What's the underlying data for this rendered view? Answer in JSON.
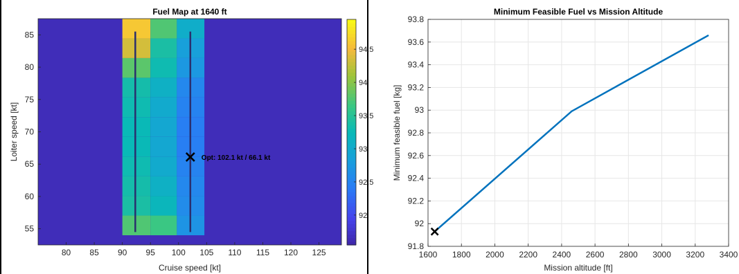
{
  "chart_data": [
    {
      "type": "heatmap",
      "title": "Fuel Map at 1640 ft",
      "xlabel": "Cruise speed [kt]",
      "ylabel": "Loiter speed [kt]",
      "xlim": [
        75,
        129
      ],
      "ylim": [
        52.5,
        87.5
      ],
      "xticks": [
        80,
        85,
        90,
        95,
        100,
        105,
        110,
        115,
        120,
        125
      ],
      "yticks": [
        55,
        60,
        65,
        70,
        75,
        80,
        85
      ],
      "colorbar": {
        "ticks": [
          92,
          92.5,
          93,
          93.5,
          94,
          94.5
        ],
        "range": [
          91.55,
          94.95
        ]
      },
      "background_value": 91.65,
      "columns": [
        {
          "x_range": [
            90,
            95
          ],
          "values": [
            93.75,
            93.4,
            93.35,
            93.3,
            93.25,
            93.25,
            93.3,
            93.35,
            93.8,
            94.35,
            94.6
          ]
        },
        {
          "x_range": [
            95,
            99.7
          ],
          "values": [
            93.65,
            93.2,
            93.1,
            93.0,
            92.95,
            92.95,
            93.0,
            93.1,
            93.3,
            93.4,
            93.75
          ]
        },
        {
          "x_range": [
            99.7,
            104.6
          ],
          "values": [
            92.7,
            92.6,
            92.55,
            92.5,
            92.45,
            92.45,
            92.5,
            92.55,
            92.75,
            92.85,
            93.05
          ]
        }
      ],
      "row_range": [
        54,
        87.5
      ],
      "lines": [
        {
          "x": 92.3,
          "y": [
            54.5,
            85.5
          ]
        },
        {
          "x": 102.1,
          "y": [
            54.5,
            85.5
          ]
        }
      ],
      "optimum": {
        "x": 102.1,
        "y": 66.1,
        "label": "Opt: 102.1 kt / 66.1 kt"
      }
    },
    {
      "type": "line",
      "title": "Minimum Feasible Fuel vs Mission Altitude",
      "xlabel": "Mission altitude [ft]",
      "ylabel": "Minimum feasible fuel [kg]",
      "xlim": [
        1600,
        3400
      ],
      "ylim": [
        91.8,
        93.8
      ],
      "xticks": [
        1600,
        1800,
        2000,
        2200,
        2400,
        2600,
        2800,
        3000,
        3200,
        3400
      ],
      "yticks": [
        91.8,
        92,
        92.2,
        92.4,
        92.6,
        92.8,
        93,
        93.2,
        93.4,
        93.6,
        93.8
      ],
      "ytick_labels": [
        "91.8",
        "92",
        "92.2",
        "92.4",
        "92.6",
        "92.8",
        "93",
        "93.2",
        "93.4",
        "93.6",
        "93.8"
      ],
      "grid": true,
      "x": [
        1640,
        2460,
        3280
      ],
      "y": [
        91.93,
        92.99,
        93.66
      ],
      "marker": {
        "x": 1640,
        "y": 91.93
      },
      "color": "#0072BD"
    }
  ]
}
